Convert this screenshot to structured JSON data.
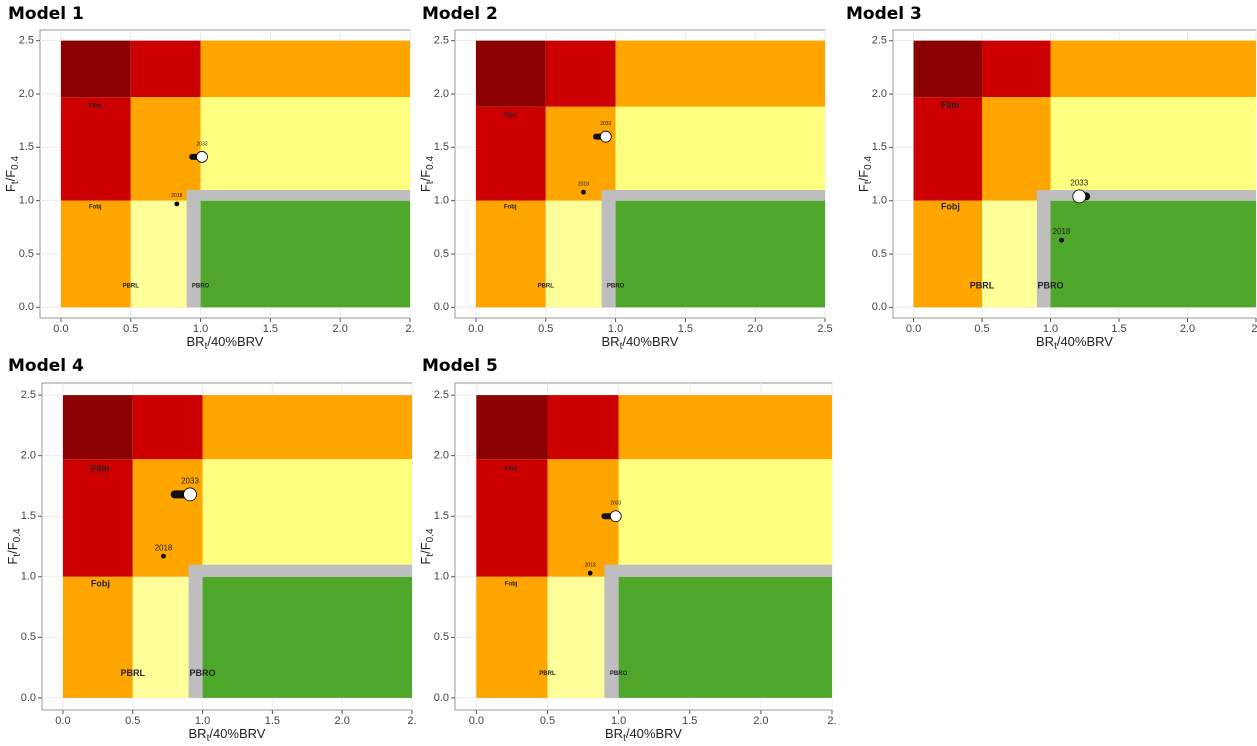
{
  "chart_data": [
    {
      "type": "kobe",
      "title": "Model 1",
      "x_label": [
        "BR",
        "t",
        "/40%BRV"
      ],
      "y_label": [
        "F",
        "t",
        "/F",
        "0.4"
      ],
      "xlim": [
        -0.15,
        2.5
      ],
      "ylim": [
        -0.1,
        2.6
      ],
      "xticks": [
        {
          "value": 0,
          "label": "0.0"
        },
        {
          "value": 0.5,
          "label": "0.5"
        },
        {
          "value": 1,
          "label": "1.0"
        },
        {
          "value": 1.5,
          "label": "1.5"
        },
        {
          "value": 2,
          "label": "2.0"
        },
        {
          "value": 2.5,
          "label": "2."
        }
      ],
      "yticks": [
        {
          "value": 0,
          "label": "0.0"
        },
        {
          "value": 0.5,
          "label": "0.5"
        },
        {
          "value": 1,
          "label": "1.0"
        },
        {
          "value": 1.5,
          "label": "1.5"
        },
        {
          "value": 2,
          "label": "2.0"
        },
        {
          "value": 2.5,
          "label": "2.5"
        }
      ],
      "grid": true,
      "regions": [
        {
          "x": [
            0,
            0.5
          ],
          "y": [
            1.97,
            2.5
          ],
          "color": "#8b0000"
        },
        {
          "x": [
            0.5,
            1
          ],
          "y": [
            1.97,
            2.5
          ],
          "color": "#cc0000"
        },
        {
          "x": [
            1,
            2.5
          ],
          "y": [
            1.97,
            2.5
          ],
          "color": "#ffa500"
        },
        {
          "x": [
            0,
            0.5
          ],
          "y": [
            1,
            1.97
          ],
          "color": "#cc0000"
        },
        {
          "x": [
            0.5,
            1
          ],
          "y": [
            1,
            1.97
          ],
          "color": "#ffa500"
        },
        {
          "x": [
            1,
            2.5
          ],
          "y": [
            1.1,
            1.97
          ],
          "color": "#ffff80"
        },
        {
          "x": [
            0,
            0.5
          ],
          "y": [
            0,
            1
          ],
          "color": "#ffa500"
        },
        {
          "x": [
            0.5,
            0.9
          ],
          "y": [
            0,
            1
          ],
          "color": "#ffff99"
        },
        {
          "x": [
            1,
            2.5
          ],
          "y": [
            0,
            1
          ],
          "color": "#4ea72a"
        },
        {
          "x": [
            0.9,
            1
          ],
          "y": [
            0,
            1.1
          ],
          "color": "#bebebe"
        },
        {
          "x": [
            1,
            2.5
          ],
          "y": [
            1,
            1.1
          ],
          "color": "#bebebe"
        }
      ],
      "region_labels": [
        "Flim",
        "Fobj",
        "PBRL",
        "PBRO"
      ],
      "trajectory": {
        "x": [
          0.94,
          1.0
        ],
        "y": [
          1.41,
          1.41
        ]
      },
      "points": {
        "x": [
          0.83,
          1.01
        ],
        "y": [
          0.97,
          1.41
        ],
        "labels": [
          "2018",
          "2033"
        ]
      }
    },
    {
      "type": "kobe",
      "title": "Model 2",
      "x_label": [
        "BR",
        "t",
        "/40%BRV"
      ],
      "y_label": [
        "F",
        "t",
        "/F",
        "0.4"
      ],
      "xlim": [
        -0.15,
        2.5
      ],
      "ylim": [
        -0.1,
        2.6
      ],
      "xticks": [
        {
          "value": 0,
          "label": "0.0"
        },
        {
          "value": 0.5,
          "label": "0.5"
        },
        {
          "value": 1,
          "label": "1.0"
        },
        {
          "value": 1.5,
          "label": "1.5"
        },
        {
          "value": 2,
          "label": "2.0"
        },
        {
          "value": 2.5,
          "label": "2.5"
        }
      ],
      "yticks": [
        {
          "value": 0,
          "label": "0.0"
        },
        {
          "value": 0.5,
          "label": "0.5"
        },
        {
          "value": 1,
          "label": "1.0"
        },
        {
          "value": 1.5,
          "label": "1.5"
        },
        {
          "value": 2,
          "label": "2.0"
        },
        {
          "value": 2.5,
          "label": "2.5"
        }
      ],
      "grid": true,
      "regions": [
        {
          "x": [
            0,
            0.5
          ],
          "y": [
            1.88,
            2.5
          ],
          "color": "#8b0000"
        },
        {
          "x": [
            0.5,
            1
          ],
          "y": [
            1.88,
            2.5
          ],
          "color": "#cc0000"
        },
        {
          "x": [
            1,
            2.5
          ],
          "y": [
            1.88,
            2.5
          ],
          "color": "#ffa500"
        },
        {
          "x": [
            0,
            0.5
          ],
          "y": [
            1,
            1.88
          ],
          "color": "#cc0000"
        },
        {
          "x": [
            0.5,
            1
          ],
          "y": [
            1,
            1.88
          ],
          "color": "#ffa500"
        },
        {
          "x": [
            1,
            2.5
          ],
          "y": [
            1.1,
            1.88
          ],
          "color": "#ffff80"
        },
        {
          "x": [
            0,
            0.5
          ],
          "y": [
            0,
            1
          ],
          "color": "#ffa500"
        },
        {
          "x": [
            0.5,
            0.9
          ],
          "y": [
            0,
            1
          ],
          "color": "#ffff99"
        },
        {
          "x": [
            1,
            2.5
          ],
          "y": [
            0,
            1
          ],
          "color": "#4ea72a"
        },
        {
          "x": [
            0.9,
            1
          ],
          "y": [
            0,
            1.1
          ],
          "color": "#bebebe"
        },
        {
          "x": [
            1,
            2.5
          ],
          "y": [
            1,
            1.1
          ],
          "color": "#bebebe"
        }
      ],
      "region_labels": [
        "Flim",
        "Fobj",
        "PBRL",
        "PBRO"
      ],
      "trajectory": {
        "x": [
          0.86,
          0.92
        ],
        "y": [
          1.6,
          1.6
        ]
      },
      "points": {
        "x": [
          0.77,
          0.93
        ],
        "y": [
          1.08,
          1.6
        ],
        "labels": [
          "2018",
          "2033"
        ]
      }
    },
    {
      "type": "kobe",
      "title": "Model 3",
      "x_label": [
        "BR",
        "t",
        "/40%BRV"
      ],
      "y_label": [
        "F",
        "t",
        "/F",
        "0.4"
      ],
      "xlim": [
        -0.15,
        2.5
      ],
      "ylim": [
        -0.1,
        2.6
      ],
      "xticks": [
        {
          "value": 0,
          "label": "0.0"
        },
        {
          "value": 0.5,
          "label": "0.5"
        },
        {
          "value": 1,
          "label": "1.0"
        },
        {
          "value": 1.5,
          "label": "1.5"
        },
        {
          "value": 2,
          "label": "2.0"
        },
        {
          "value": 2.5,
          "label": "2."
        }
      ],
      "yticks": [
        {
          "value": 0,
          "label": "0.0"
        },
        {
          "value": 0.5,
          "label": "0.5"
        },
        {
          "value": 1,
          "label": "1.0"
        },
        {
          "value": 1.5,
          "label": "1.5"
        },
        {
          "value": 2,
          "label": "2.0"
        },
        {
          "value": 2.5,
          "label": "2.5"
        }
      ],
      "grid": true,
      "regions": [
        {
          "x": [
            0,
            0.5
          ],
          "y": [
            1.97,
            2.5
          ],
          "color": "#8b0000"
        },
        {
          "x": [
            0.5,
            1
          ],
          "y": [
            1.97,
            2.5
          ],
          "color": "#cc0000"
        },
        {
          "x": [
            1,
            2.5
          ],
          "y": [
            1.97,
            2.5
          ],
          "color": "#ffa500"
        },
        {
          "x": [
            0,
            0.5
          ],
          "y": [
            1,
            1.97
          ],
          "color": "#cc0000"
        },
        {
          "x": [
            0.5,
            1
          ],
          "y": [
            1,
            1.97
          ],
          "color": "#ffa500"
        },
        {
          "x": [
            1,
            2.5
          ],
          "y": [
            1.1,
            1.97
          ],
          "color": "#ffff80"
        },
        {
          "x": [
            0,
            0.5
          ],
          "y": [
            0,
            1
          ],
          "color": "#ffa500"
        },
        {
          "x": [
            0.5,
            0.9
          ],
          "y": [
            0,
            1
          ],
          "color": "#ffff99"
        },
        {
          "x": [
            1,
            2.5
          ],
          "y": [
            0,
            1
          ],
          "color": "#4ea72a"
        },
        {
          "x": [
            0.9,
            1
          ],
          "y": [
            0,
            1.1
          ],
          "color": "#bebebe"
        },
        {
          "x": [
            1,
            2.5
          ],
          "y": [
            1,
            1.1
          ],
          "color": "#bebebe"
        }
      ],
      "region_labels": [
        "Flim",
        "Fobj",
        "PBRL",
        "PBRO"
      ],
      "trajectory": {
        "x": [
          1.22,
          1.26
        ],
        "y": [
          1.04,
          1.04
        ]
      },
      "points": {
        "x": [
          1.08,
          1.21
        ],
        "y": [
          0.63,
          1.04
        ],
        "labels": [
          "2018",
          "2033"
        ]
      }
    },
    {
      "type": "kobe",
      "title": "Model 4",
      "x_label": [
        "BR",
        "t",
        "/40%BRV"
      ],
      "y_label": [
        "F",
        "t",
        "/F",
        "0.4"
      ],
      "xlim": [
        -0.15,
        2.5
      ],
      "ylim": [
        -0.1,
        2.6
      ],
      "xticks": [
        {
          "value": 0,
          "label": "0.0"
        },
        {
          "value": 0.5,
          "label": "0.5"
        },
        {
          "value": 1,
          "label": "1.0"
        },
        {
          "value": 1.5,
          "label": "1.5"
        },
        {
          "value": 2,
          "label": "2.0"
        },
        {
          "value": 2.5,
          "label": "2."
        }
      ],
      "yticks": [
        {
          "value": 0,
          "label": "0.0"
        },
        {
          "value": 0.5,
          "label": "0.5"
        },
        {
          "value": 1,
          "label": "1.0"
        },
        {
          "value": 1.5,
          "label": "1.5"
        },
        {
          "value": 2,
          "label": "2.0"
        },
        {
          "value": 2.5,
          "label": "2.5"
        }
      ],
      "grid": true,
      "regions": [
        {
          "x": [
            0,
            0.5
          ],
          "y": [
            1.97,
            2.5
          ],
          "color": "#8b0000"
        },
        {
          "x": [
            0.5,
            1
          ],
          "y": [
            1.97,
            2.5
          ],
          "color": "#cc0000"
        },
        {
          "x": [
            1,
            2.5
          ],
          "y": [
            1.97,
            2.5
          ],
          "color": "#ffa500"
        },
        {
          "x": [
            0,
            0.5
          ],
          "y": [
            1,
            1.97
          ],
          "color": "#cc0000"
        },
        {
          "x": [
            0.5,
            1
          ],
          "y": [
            1,
            1.97
          ],
          "color": "#ffa500"
        },
        {
          "x": [
            1,
            2.5
          ],
          "y": [
            1.1,
            1.97
          ],
          "color": "#ffff80"
        },
        {
          "x": [
            0,
            0.5
          ],
          "y": [
            0,
            1
          ],
          "color": "#ffa500"
        },
        {
          "x": [
            0.5,
            0.9
          ],
          "y": [
            0,
            1
          ],
          "color": "#ffff99"
        },
        {
          "x": [
            1,
            2.5
          ],
          "y": [
            0,
            1
          ],
          "color": "#4ea72a"
        },
        {
          "x": [
            0.9,
            1
          ],
          "y": [
            0,
            1.1
          ],
          "color": "#bebebe"
        },
        {
          "x": [
            1,
            2.5
          ],
          "y": [
            1,
            1.1
          ],
          "color": "#bebebe"
        }
      ],
      "region_labels": [
        "Flim",
        "Fobj",
        "PBRL",
        "PBRO"
      ],
      "trajectory": {
        "x": [
          0.8,
          0.9
        ],
        "y": [
          1.68,
          1.68
        ]
      },
      "points": {
        "x": [
          0.72,
          0.91
        ],
        "y": [
          1.17,
          1.68
        ],
        "labels": [
          "2018",
          "2033"
        ]
      }
    },
    {
      "type": "kobe",
      "title": "Model 5",
      "x_label": [
        "BR",
        "t",
        "/40%BRV"
      ],
      "y_label": [
        "F",
        "t",
        "/F",
        "0.4"
      ],
      "xlim": [
        -0.15,
        2.5
      ],
      "ylim": [
        -0.1,
        2.6
      ],
      "xticks": [
        {
          "value": 0,
          "label": "0.0"
        },
        {
          "value": 0.5,
          "label": "0.5"
        },
        {
          "value": 1,
          "label": "1.0"
        },
        {
          "value": 1.5,
          "label": "1.5"
        },
        {
          "value": 2,
          "label": "2.0"
        },
        {
          "value": 2.5,
          "label": "2."
        }
      ],
      "yticks": [
        {
          "value": 0,
          "label": "0.0"
        },
        {
          "value": 0.5,
          "label": "0.5"
        },
        {
          "value": 1,
          "label": "1.0"
        },
        {
          "value": 1.5,
          "label": "1.5"
        },
        {
          "value": 2,
          "label": "2.0"
        },
        {
          "value": 2.5,
          "label": "2.5"
        }
      ],
      "grid": true,
      "regions": [
        {
          "x": [
            0,
            0.5
          ],
          "y": [
            1.97,
            2.5
          ],
          "color": "#8b0000"
        },
        {
          "x": [
            0.5,
            1
          ],
          "y": [
            1.97,
            2.5
          ],
          "color": "#cc0000"
        },
        {
          "x": [
            1,
            2.5
          ],
          "y": [
            1.97,
            2.5
          ],
          "color": "#ffa500"
        },
        {
          "x": [
            0,
            0.5
          ],
          "y": [
            1,
            1.97
          ],
          "color": "#cc0000"
        },
        {
          "x": [
            0.5,
            1
          ],
          "y": [
            1,
            1.97
          ],
          "color": "#ffa500"
        },
        {
          "x": [
            1,
            2.5
          ],
          "y": [
            1.1,
            1.97
          ],
          "color": "#ffff80"
        },
        {
          "x": [
            0,
            0.5
          ],
          "y": [
            0,
            1
          ],
          "color": "#ffa500"
        },
        {
          "x": [
            0.5,
            0.9
          ],
          "y": [
            0,
            1
          ],
          "color": "#ffff99"
        },
        {
          "x": [
            1,
            2.5
          ],
          "y": [
            0,
            1
          ],
          "color": "#4ea72a"
        },
        {
          "x": [
            0.9,
            1
          ],
          "y": [
            0,
            1.1
          ],
          "color": "#bebebe"
        },
        {
          "x": [
            1,
            2.5
          ],
          "y": [
            1,
            1.1
          ],
          "color": "#bebebe"
        }
      ],
      "region_labels": [
        "Flim",
        "Fobj",
        "PBRL",
        "PBRO"
      ],
      "trajectory": {
        "x": [
          0.9,
          0.97
        ],
        "y": [
          1.5,
          1.5
        ]
      },
      "points": {
        "x": [
          0.8,
          0.98
        ],
        "y": [
          1.03,
          1.5
        ],
        "labels": [
          "2018",
          "2033"
        ]
      }
    }
  ]
}
